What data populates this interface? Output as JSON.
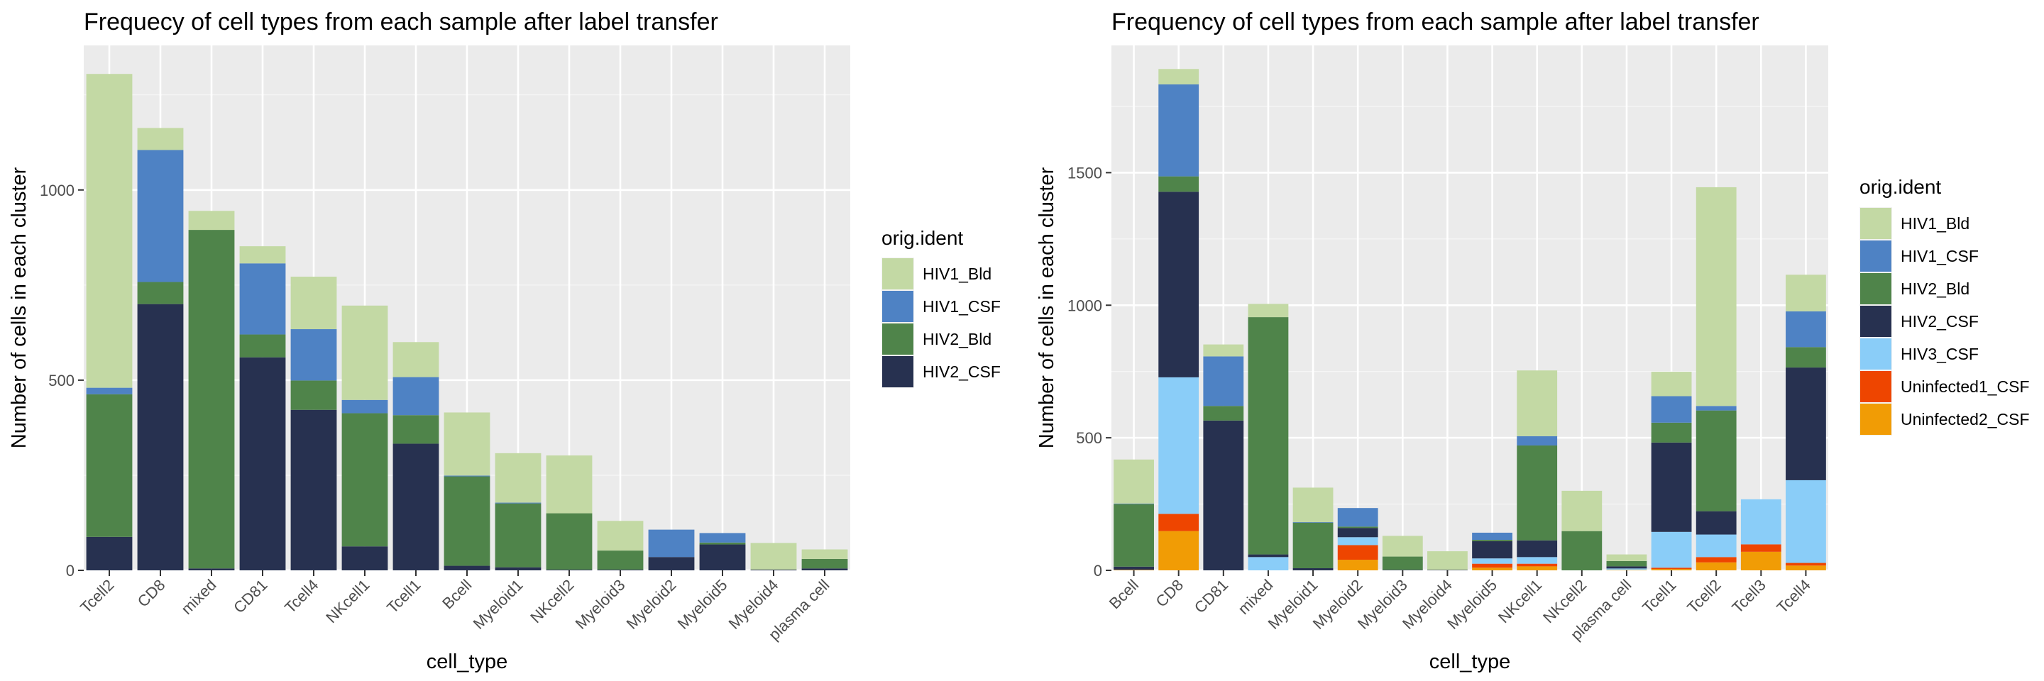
{
  "chart_data": [
    {
      "type": "bar",
      "stacked": true,
      "title": "Frequecy of cell types from each sample after label transfer",
      "xlabel": "cell_type",
      "ylabel": "Number of cells in each cluster",
      "ylim": [
        0,
        1380
      ],
      "yticks": [
        0,
        500,
        1000
      ],
      "grid": true,
      "legend_position": "right",
      "legend_title": "orig.ident",
      "categories": [
        "Tcell2",
        "CD8",
        "mixed",
        "CD81",
        "Tcell4",
        "NKcell1",
        "Tcell1",
        "Bcell",
        "Myeloid1",
        "NKcell2",
        "Myeloid3",
        "Myeloid2",
        "Myeloid5",
        "Myeloid4",
        "plasma cell"
      ],
      "series": [
        {
          "name": "HIV2_CSF",
          "color": "#273150",
          "values": [
            88,
            700,
            5,
            560,
            422,
            63,
            333,
            12,
            8,
            2,
            2,
            35,
            68,
            2,
            5
          ]
        },
        {
          "name": "HIV2_Bld",
          "color": "#4f844a",
          "values": [
            375,
            58,
            890,
            60,
            77,
            350,
            75,
            235,
            168,
            148,
            50,
            0,
            5,
            0,
            25
          ]
        },
        {
          "name": "HIV1_CSF",
          "color": "#4e82c4",
          "values": [
            17,
            347,
            0,
            187,
            135,
            35,
            100,
            2,
            2,
            0,
            0,
            72,
            25,
            0,
            0
          ]
        },
        {
          "name": "HIV1_Bld",
          "color": "#c3d9a4",
          "values": [
            825,
            58,
            50,
            45,
            138,
            248,
            92,
            166,
            130,
            152,
            78,
            0,
            0,
            70,
            25
          ]
        }
      ]
    },
    {
      "type": "bar",
      "stacked": true,
      "title": "Frequency of cell types from each sample after label transfer",
      "xlabel": "cell_type",
      "ylabel": "Number of cells in each cluster",
      "ylim": [
        0,
        1980
      ],
      "yticks": [
        0,
        500,
        1000,
        1500
      ],
      "grid": true,
      "legend_position": "right",
      "legend_title": "orig.ident",
      "categories": [
        "Bcell",
        "CD8",
        "CD81",
        "mixed",
        "Myeloid1",
        "Myeloid2",
        "Myeloid3",
        "Myeloid4",
        "Myeloid5",
        "NKcell1",
        "NKcell2",
        "plasma cell",
        "Tcell1",
        "Tcell2",
        "Tcell3",
        "Tcell4"
      ],
      "series": [
        {
          "name": "Uninfected2_CSF",
          "color": "#f19c05",
          "values": [
            2,
            148,
            0,
            0,
            0,
            40,
            0,
            0,
            10,
            15,
            0,
            2,
            5,
            30,
            70,
            18
          ]
        },
        {
          "name": "Uninfected1_CSF",
          "color": "#ee4500",
          "values": [
            0,
            65,
            0,
            0,
            0,
            55,
            0,
            0,
            15,
            10,
            0,
            0,
            5,
            20,
            28,
            10
          ]
        },
        {
          "name": "HIV3_CSF",
          "color": "#8acdf8",
          "values": [
            0,
            515,
            0,
            50,
            0,
            30,
            0,
            0,
            20,
            25,
            0,
            5,
            135,
            85,
            170,
            312
          ]
        },
        {
          "name": "HIV2_CSF",
          "color": "#273150",
          "values": [
            12,
            700,
            565,
            10,
            8,
            35,
            2,
            2,
            65,
            63,
            0,
            8,
            337,
            88,
            0,
            425
          ]
        },
        {
          "name": "HIV2_Bld",
          "color": "#4f844a",
          "values": [
            236,
            58,
            55,
            895,
            172,
            5,
            50,
            0,
            5,
            358,
            148,
            20,
            75,
            380,
            0,
            77
          ]
        },
        {
          "name": "HIV1_CSF",
          "color": "#4e82c4",
          "values": [
            2,
            347,
            187,
            0,
            2,
            70,
            0,
            0,
            27,
            35,
            0,
            0,
            100,
            17,
            0,
            135
          ]
        },
        {
          "name": "HIV1_Bld",
          "color": "#c3d9a4",
          "values": [
            166,
            58,
            45,
            50,
            130,
            0,
            78,
            70,
            0,
            248,
            152,
            25,
            92,
            825,
            0,
            138
          ]
        }
      ]
    }
  ]
}
